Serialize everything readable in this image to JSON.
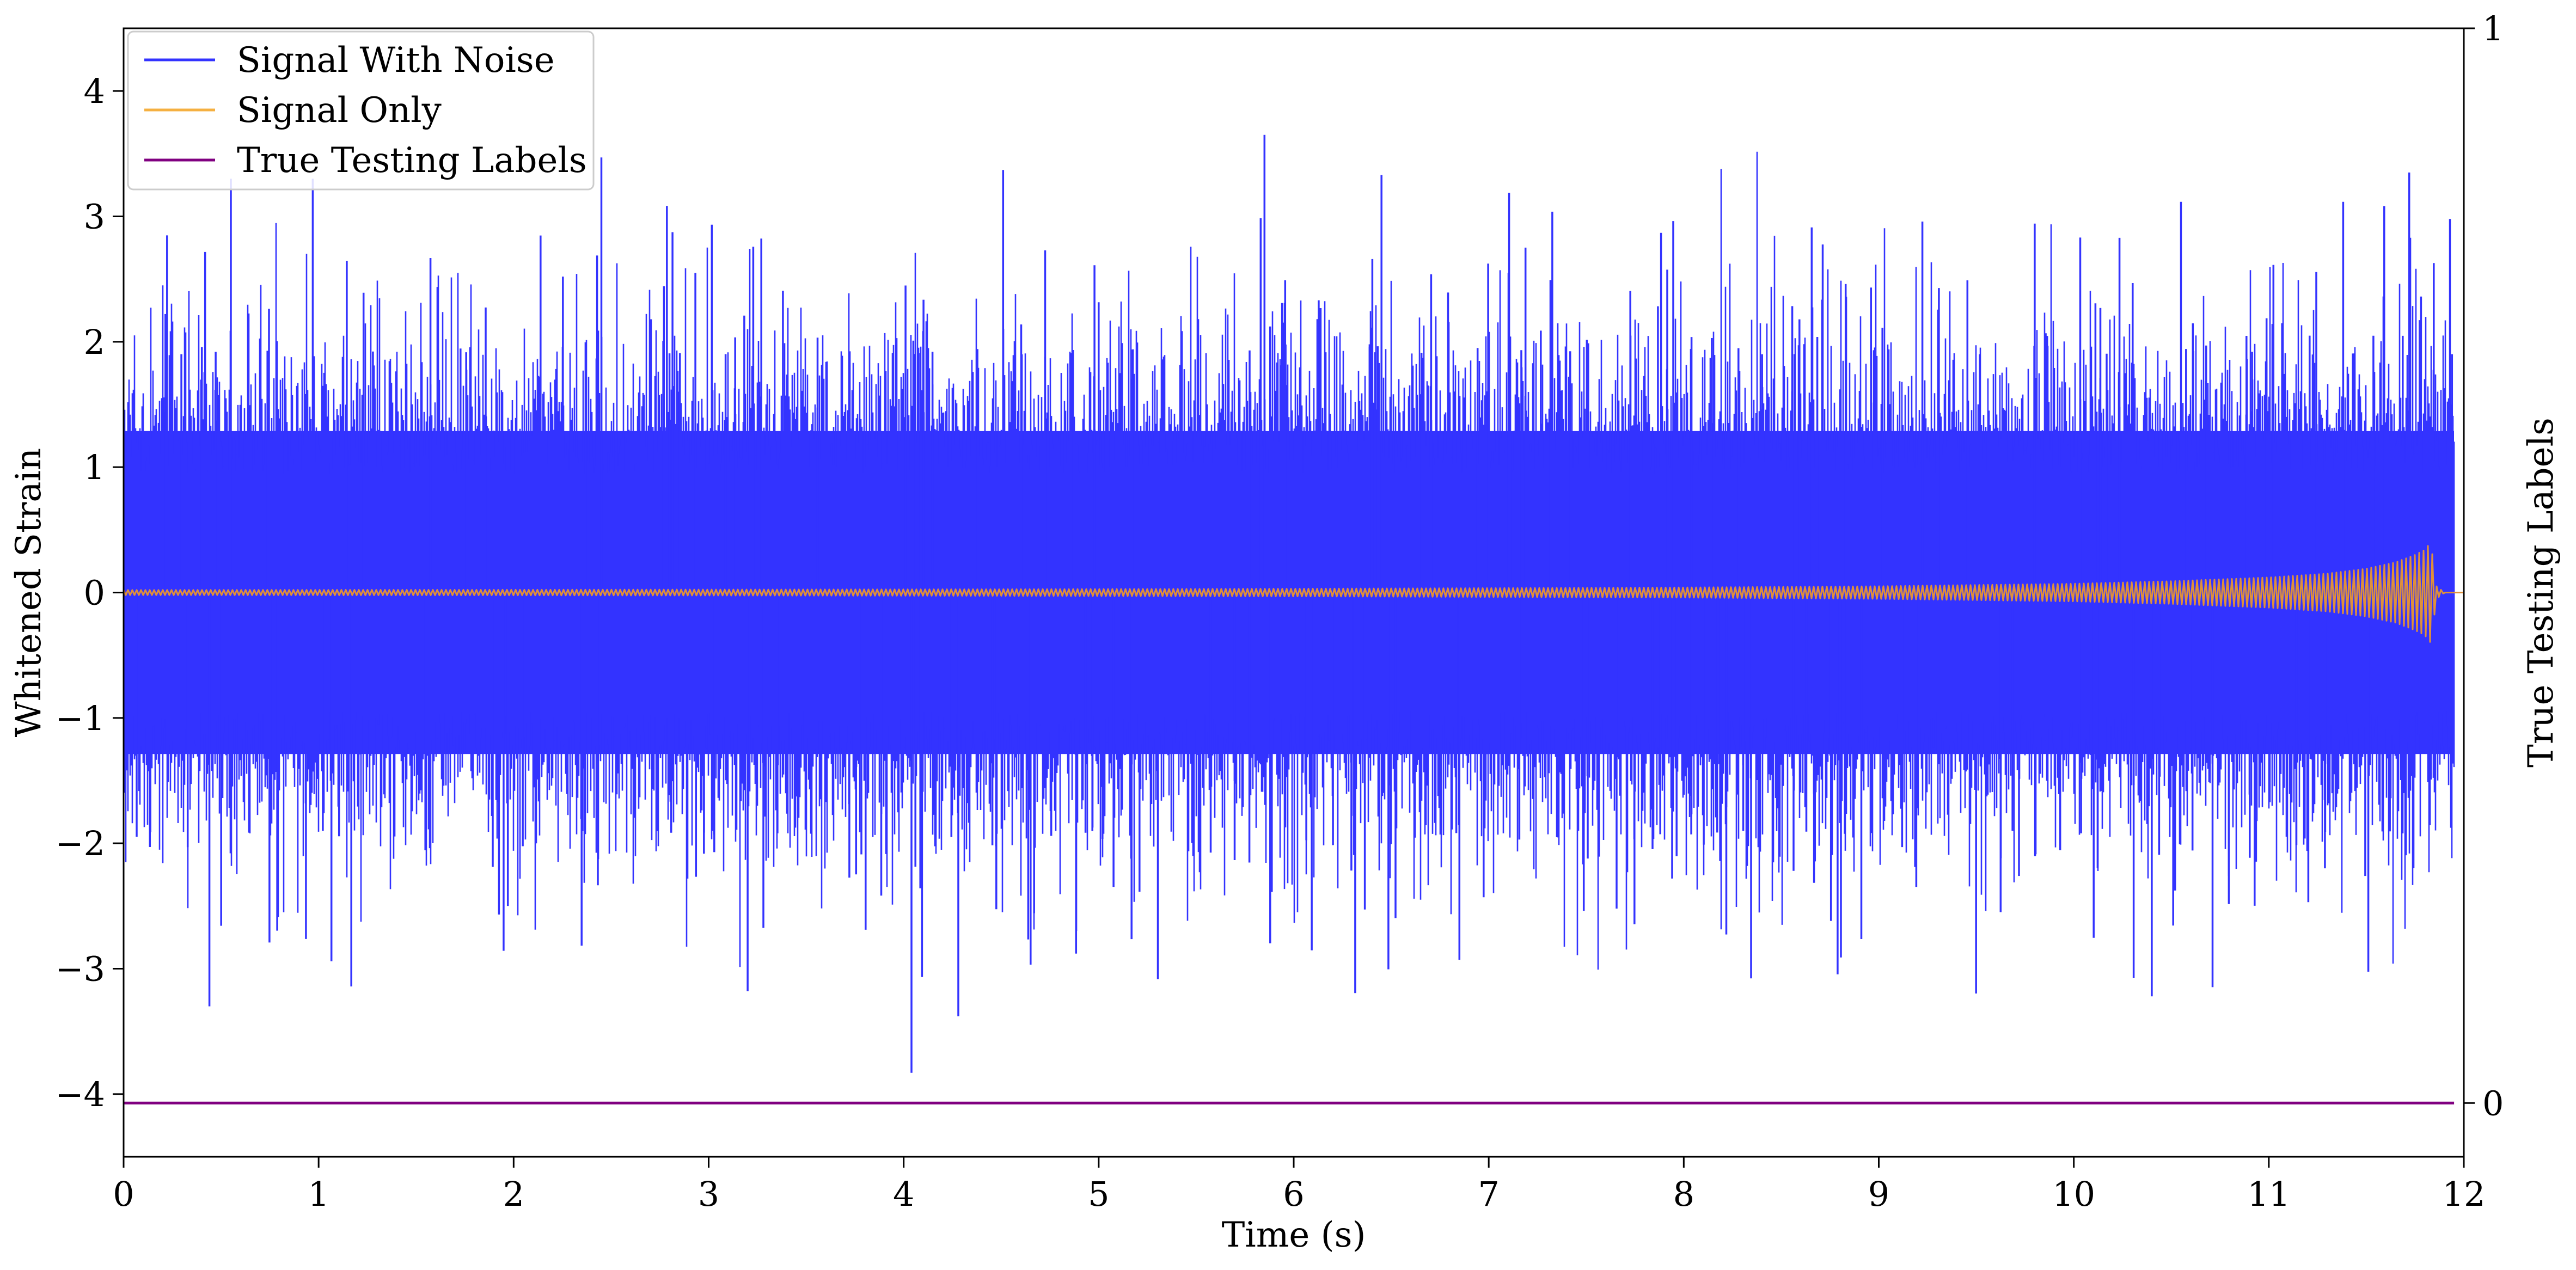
{
  "chart_data": {
    "type": "line",
    "xlabel": "Time (s)",
    "ylabel": "Whitened Strain",
    "y2label": "True Testing Labels",
    "xlim": [
      0,
      12
    ],
    "ylim": [
      -4.5,
      4.5
    ],
    "y2lim": [
      -0.05,
      1.0
    ],
    "x_ticks": [
      0,
      1,
      2,
      3,
      4,
      5,
      6,
      7,
      8,
      9,
      10,
      11,
      12
    ],
    "y_ticks": [
      -4,
      -3,
      -2,
      -1,
      0,
      1,
      2,
      3,
      4
    ],
    "y_tick_labels": [
      "−4",
      "−3",
      "−2",
      "−1",
      "0",
      "1",
      "2",
      "3",
      "4"
    ],
    "y2_ticks": [
      0,
      1
    ],
    "y2_tick_labels": [
      "0",
      "1"
    ],
    "grid": false,
    "legend": {
      "placement": "top-left",
      "entries": [
        {
          "label": "Signal With Noise",
          "color": "#3333ff"
        },
        {
          "label": "Signal Only",
          "color": "#f5b041"
        },
        {
          "label": "True Testing Labels",
          "color": "#800080"
        }
      ]
    },
    "series": [
      {
        "name": "Signal With Noise",
        "axis": "left",
        "color": "#3333ff",
        "style": "dense noise band centred on 0, core envelope about ±1.4, spikes up to about ±3.5",
        "x_range": [
          0,
          11.95
        ],
        "typical_envelope": [
          -1.4,
          1.4
        ],
        "max_peak": {
          "x": 5.85,
          "y": 3.65
        },
        "min_peak": {
          "x": 4.04,
          "y": -3.83
        },
        "notable_peaks": [
          {
            "x": 0.55,
            "y": 3.3
          },
          {
            "x": 0.97,
            "y": 3.3
          },
          {
            "x": 2.45,
            "y": 3.47
          },
          {
            "x": 4.51,
            "y": 3.37
          },
          {
            "x": 6.45,
            "y": 3.33
          },
          {
            "x": 11.72,
            "y": 3.35
          },
          {
            "x": 0.44,
            "y": -3.3
          },
          {
            "x": 3.2,
            "y": -3.18
          },
          {
            "x": 4.28,
            "y": -3.38
          },
          {
            "x": 10.4,
            "y": -3.22
          }
        ]
      },
      {
        "name": "Signal Only",
        "axis": "left",
        "color": "#e0903a",
        "style": "chirp: oscillation around 0 whose amplitude grows slowly then sharply, merging near 11.83 s and dropping to 0",
        "x": [
          0,
          2,
          4,
          6,
          8,
          9,
          10,
          10.5,
          11,
          11.3,
          11.5,
          11.65,
          11.75,
          11.8,
          11.83,
          11.86,
          11.9,
          12
        ],
        "amplitude": [
          0.02,
          0.022,
          0.025,
          0.03,
          0.04,
          0.05,
          0.07,
          0.09,
          0.12,
          0.15,
          0.19,
          0.24,
          0.3,
          0.34,
          0.4,
          0.05,
          0.0,
          0.0
        ]
      },
      {
        "name": "True Testing Labels",
        "axis": "right",
        "color": "#800080",
        "x": [
          0,
          11.95
        ],
        "y": [
          0,
          0
        ]
      }
    ]
  }
}
